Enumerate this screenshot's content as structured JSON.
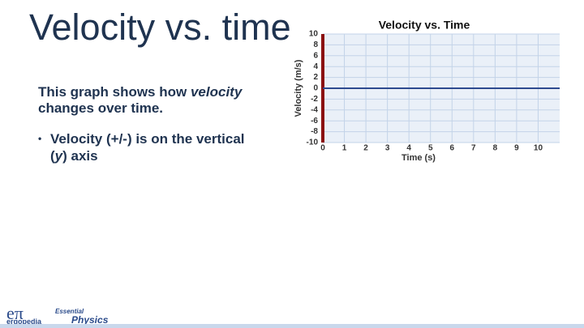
{
  "slide": {
    "title": "Velocity vs. time",
    "intro": [
      "This graph shows how ",
      "velocity",
      " changes over time."
    ],
    "bullet": [
      "Velocity (+/-) is on the vertical (",
      "y",
      ") axis"
    ],
    "logo": {
      "symbol": "eπ",
      "brand": "ergopedia",
      "series_small": "Essential",
      "series_big": "Physics"
    }
  },
  "chart_data": {
    "type": "line",
    "title": "Velocity vs. Time",
    "x_label": "Time (s)",
    "y_label": "Velocity (m/s)",
    "x": [
      0,
      11
    ],
    "series": [
      {
        "name": "Velocity",
        "color": "#2e4a8f",
        "values": [
          0,
          0
        ]
      }
    ],
    "xlim": [
      0,
      11
    ],
    "xticks": [
      0,
      1,
      2,
      3,
      4,
      5,
      6,
      7,
      8,
      9,
      10
    ],
    "ylim": [
      -10,
      10
    ],
    "yticks": [
      -10,
      -8,
      -6,
      -4,
      -2,
      0,
      2,
      4,
      6,
      8,
      10
    ],
    "grid": true,
    "grid_color": "#c3d3e8",
    "plot_background": "#eaf0f8",
    "y_axis_color": "#8b1010"
  }
}
